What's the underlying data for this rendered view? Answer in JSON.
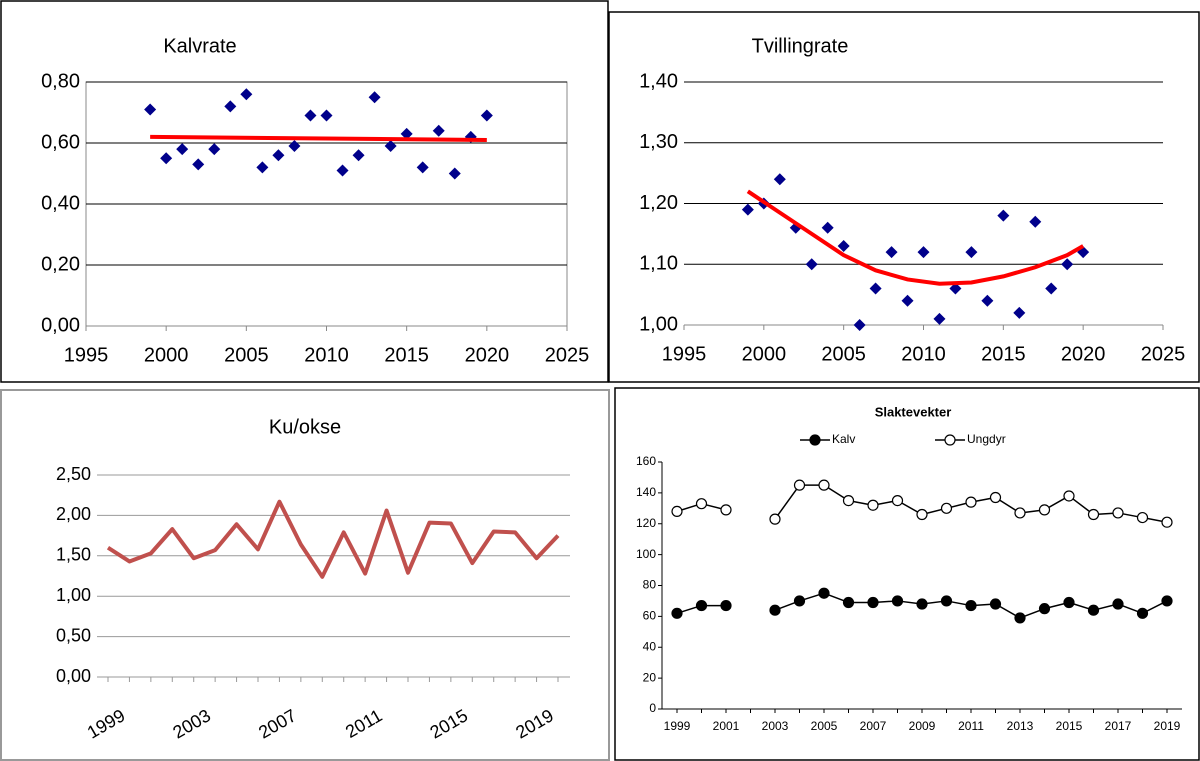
{
  "chart_data": [
    {
      "type": "scatter",
      "title": "Kalvrate",
      "series": [
        {
          "color": "#00008b",
          "mark": "diamond",
          "x": [
            1999,
            2000,
            2001,
            2002,
            2003,
            2004,
            2005,
            2006,
            2007,
            2008,
            2009,
            2010,
            2011,
            2012,
            2013,
            2014,
            2015,
            2016,
            2017,
            2018,
            2019,
            2020
          ],
          "values": [
            0.71,
            0.55,
            0.58,
            0.53,
            0.58,
            0.72,
            0.76,
            0.52,
            0.56,
            0.59,
            0.69,
            0.69,
            0.51,
            0.56,
            0.75,
            0.59,
            0.63,
            0.52,
            0.64,
            0.5,
            0.62,
            0.69
          ]
        },
        {
          "color": "#ff0000",
          "mark": "line",
          "x": [
            1999,
            2020
          ],
          "values": [
            0.62,
            0.61
          ]
        }
      ],
      "xlim": [
        1995,
        2025
      ],
      "xticks": [
        1995,
        2000,
        2005,
        2010,
        2015,
        2020,
        2025
      ],
      "ylim": [
        0,
        0.8
      ],
      "yticks": [
        {
          "value": 0,
          "label": "0,00"
        },
        {
          "value": 0.2,
          "label": "0,20"
        },
        {
          "value": 0.4,
          "label": "0,40"
        },
        {
          "value": 0.6,
          "label": "0,60"
        },
        {
          "value": 0.8,
          "label": "0,80"
        }
      ],
      "grid": true
    },
    {
      "type": "scatter",
      "title": "Tvillingrate",
      "series": [
        {
          "color": "#00008b",
          "mark": "diamond",
          "x": [
            1999,
            2000,
            2001,
            2002,
            2003,
            2004,
            2005,
            2006,
            2007,
            2008,
            2009,
            2010,
            2011,
            2012,
            2013,
            2014,
            2015,
            2016,
            2017,
            2018,
            2019,
            2020
          ],
          "values": [
            1.19,
            1.2,
            1.24,
            1.16,
            1.1,
            1.16,
            1.13,
            1.0,
            1.06,
            1.12,
            1.04,
            1.12,
            1.01,
            1.06,
            1.12,
            1.04,
            1.18,
            1.02,
            1.17,
            1.06,
            1.1,
            1.12
          ]
        },
        {
          "color": "#ff0000",
          "mark": "line",
          "x": [
            1999,
            2001,
            2003,
            2005,
            2007,
            2009,
            2011,
            2013,
            2015,
            2017,
            2019,
            2020
          ],
          "values": [
            1.22,
            1.185,
            1.15,
            1.115,
            1.09,
            1.075,
            1.068,
            1.07,
            1.08,
            1.095,
            1.115,
            1.13
          ]
        }
      ],
      "xlim": [
        1995,
        2025
      ],
      "xticks": [
        1995,
        2000,
        2005,
        2010,
        2015,
        2020,
        2025
      ],
      "ylim": [
        1,
        1.4
      ],
      "yticks": [
        {
          "value": 1,
          "label": "1,00"
        },
        {
          "value": 1.1,
          "label": "1,10"
        },
        {
          "value": 1.2,
          "label": "1,20"
        },
        {
          "value": 1.3,
          "label": "1,30"
        },
        {
          "value": 1.4,
          "label": "1,40"
        }
      ],
      "grid": true
    },
    {
      "type": "line",
      "title": "Ku/okse",
      "categories": [
        "1999",
        null,
        null,
        null,
        "2003",
        null,
        null,
        null,
        "2007",
        null,
        null,
        null,
        "2011",
        null,
        null,
        null,
        "2015",
        null,
        null,
        null,
        "2019",
        null
      ],
      "series": [
        {
          "color": "#c0504d",
          "values": [
            1.6,
            1.43,
            1.53,
            1.83,
            1.47,
            1.57,
            1.89,
            1.58,
            2.17,
            1.64,
            1.24,
            1.79,
            1.28,
            2.06,
            1.29,
            1.91,
            1.9,
            1.41,
            1.8,
            1.79,
            1.47,
            1.75
          ]
        }
      ],
      "ylim": [
        0,
        2.5
      ],
      "yticks": [
        {
          "value": 0,
          "label": "0,00"
        },
        {
          "value": 0.5,
          "label": "0,50"
        },
        {
          "value": 1,
          "label": "1,00"
        },
        {
          "value": 1.5,
          "label": "1,50"
        },
        {
          "value": 2,
          "label": "2,00"
        },
        {
          "value": 2.5,
          "label": "2,50"
        }
      ],
      "grid": true
    },
    {
      "type": "line",
      "title": "Slaktevekter",
      "legend": "top",
      "categories": [
        "1999",
        null,
        "2001",
        null,
        "2003",
        null,
        "2005",
        null,
        "2007",
        null,
        "2009",
        null,
        "2011",
        null,
        "2013",
        null,
        "2015",
        null,
        "2017",
        null,
        "2019"
      ],
      "series": [
        {
          "name": "Kalv",
          "color": "#000000",
          "marker_fill": "#000000",
          "values": [
            62,
            67,
            67,
            null,
            64,
            70,
            75,
            69,
            69,
            70,
            68,
            70,
            67,
            68,
            59,
            65,
            69,
            64,
            68,
            62,
            70
          ]
        },
        {
          "name": "Ungdyr",
          "color": "#000000",
          "marker_fill": "#ffffff",
          "values": [
            128,
            133,
            129,
            null,
            123,
            145,
            145,
            135,
            132,
            135,
            126,
            130,
            134,
            137,
            127,
            129,
            138,
            126,
            127,
            124,
            121
          ]
        }
      ],
      "ylim": [
        0,
        160
      ],
      "yticks": [
        0,
        20,
        40,
        60,
        80,
        100,
        120,
        140,
        160
      ],
      "grid": false
    }
  ]
}
